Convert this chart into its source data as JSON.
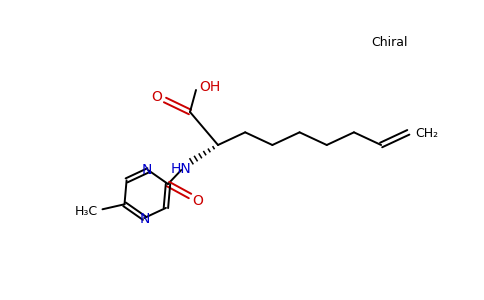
{
  "bg_color": "#ffffff",
  "bond_color": "#000000",
  "nitrogen_color": "#0000cc",
  "oxygen_color": "#cc0000",
  "chiral_label": "Chiral",
  "ch2_label": "CH₂",
  "h3c_label": "H₃C",
  "nh_label": "HN",
  "oh_label": "OH",
  "o_label": "O",
  "n_label": "N",
  "figsize": [
    4.84,
    3.0
  ],
  "dpi": 100
}
